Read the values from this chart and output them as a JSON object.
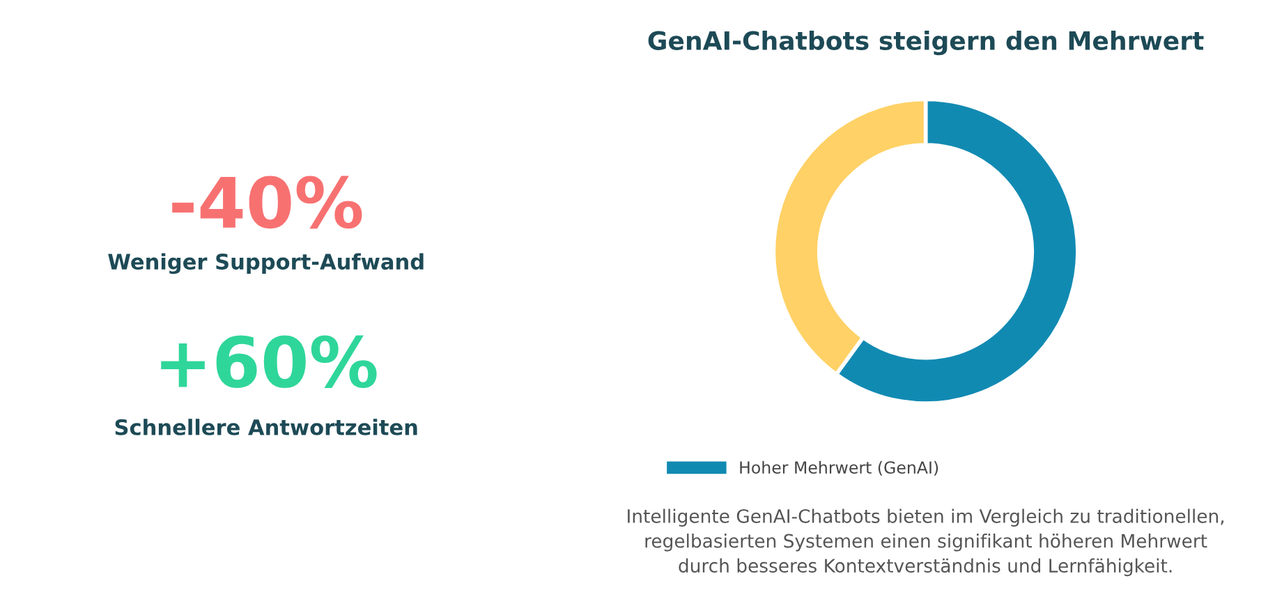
{
  "chart_data": [
    {
      "type": "other",
      "annotations": [
        "-40%",
        "Weniger Support-Aufwand",
        "+60%",
        "Schnellere Antwortzeiten"
      ],
      "colors": [
        "#f87171",
        "#1d4a56",
        "#2fd69a",
        "#1d4a56"
      ]
    },
    {
      "type": "donut",
      "title": "GenAI-Chatbots steigern den Mehrwert",
      "categories": [
        "Hoher Mehrwert (GenAI)",
        null
      ],
      "values": [
        60,
        40
      ],
      "colors": [
        "#118ab2",
        "#ffd166"
      ],
      "legend": "bottom",
      "annotations": [
        "Intelligente GenAI-Chatbots bieten im Vergleich zu traditionellen,\nregelbasierten Systemen einen signifikant höheren Mehrwert\ndurch besseres Kontextverständnis und Lernfähigkeit."
      ]
    }
  ]
}
